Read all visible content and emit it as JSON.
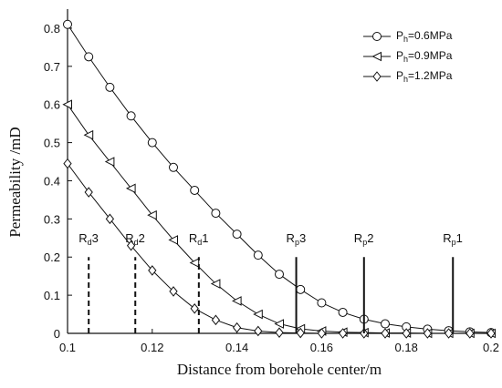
{
  "chart_data": {
    "type": "line",
    "xlabel": "Distance from borehole center/m",
    "ylabel": "Permeability /mD",
    "xlim": [
      0.1,
      0.2
    ],
    "ylim": [
      0,
      0.85
    ],
    "xticks": [
      "0.1",
      "0.12",
      "0.14",
      "0.16",
      "0.18",
      "0.2"
    ],
    "yticks": [
      "0",
      "0.1",
      "0.2",
      "0.3",
      "0.4",
      "0.5",
      "0.6",
      "0.7",
      "0.8"
    ],
    "legend_position": "top-right",
    "series": [
      {
        "name": "P_h=0.6MPa",
        "legend_main": "P",
        "legend_sub": "h",
        "legend_rest": "=0.6MPa",
        "marker": "circle",
        "x": [
          0.1,
          0.105,
          0.11,
          0.115,
          0.12,
          0.125,
          0.13,
          0.135,
          0.14,
          0.145,
          0.15,
          0.155,
          0.16,
          0.165,
          0.17,
          0.175,
          0.18,
          0.185,
          0.19,
          0.195,
          0.2
        ],
        "y": [
          0.81,
          0.725,
          0.645,
          0.57,
          0.5,
          0.435,
          0.375,
          0.315,
          0.26,
          0.205,
          0.155,
          0.115,
          0.08,
          0.055,
          0.037,
          0.025,
          0.017,
          0.011,
          0.007,
          0.004,
          0.002
        ]
      },
      {
        "name": "P_h=0.9MPa",
        "legend_main": "P",
        "legend_sub": "h",
        "legend_rest": "=0.9MPa",
        "marker": "triangle-left",
        "x": [
          0.1,
          0.105,
          0.11,
          0.115,
          0.12,
          0.125,
          0.13,
          0.135,
          0.14,
          0.145,
          0.15,
          0.155,
          0.16,
          0.165,
          0.17,
          0.175,
          0.18,
          0.185,
          0.19,
          0.195,
          0.2
        ],
        "y": [
          0.6,
          0.52,
          0.45,
          0.38,
          0.31,
          0.245,
          0.185,
          0.13,
          0.085,
          0.05,
          0.025,
          0.012,
          0.006,
          0.003,
          0.002,
          0.001,
          0.001,
          0.0,
          0.0,
          0.0,
          0.0
        ]
      },
      {
        "name": "P_h=1.2MPa",
        "legend_main": "P",
        "legend_sub": "h",
        "legend_rest": "=1.2MPa",
        "marker": "diamond",
        "x": [
          0.1,
          0.105,
          0.11,
          0.115,
          0.12,
          0.125,
          0.13,
          0.135,
          0.14,
          0.145,
          0.15,
          0.155,
          0.16,
          0.165,
          0.17,
          0.175,
          0.18,
          0.185,
          0.19,
          0.195,
          0.2
        ],
        "y": [
          0.445,
          0.37,
          0.3,
          0.23,
          0.165,
          0.11,
          0.065,
          0.035,
          0.015,
          0.006,
          0.002,
          0.001,
          0.0,
          0.0,
          0.0,
          0.0,
          0.0,
          0.0,
          0.0,
          0.0,
          0.0
        ]
      }
    ],
    "annotations": [
      {
        "id": "rd3",
        "main": "R",
        "sub": "d",
        "rest": "3",
        "x": 0.105,
        "y_top": 0.2,
        "style": "dashed"
      },
      {
        "id": "rd2",
        "main": "R",
        "sub": "d",
        "rest": "2",
        "x": 0.116,
        "y_top": 0.2,
        "style": "dashed"
      },
      {
        "id": "rd1",
        "main": "R",
        "sub": "d",
        "rest": "1",
        "x": 0.131,
        "y_top": 0.2,
        "style": "dashed"
      },
      {
        "id": "rp3",
        "main": "R",
        "sub": "p",
        "rest": "3",
        "x": 0.154,
        "y_top": 0.2,
        "style": "solid"
      },
      {
        "id": "rp2",
        "main": "R",
        "sub": "p",
        "rest": "2",
        "x": 0.17,
        "y_top": 0.2,
        "style": "solid"
      },
      {
        "id": "rp1",
        "main": "R",
        "sub": "p",
        "rest": "1",
        "x": 0.191,
        "y_top": 0.2,
        "style": "solid"
      }
    ]
  }
}
